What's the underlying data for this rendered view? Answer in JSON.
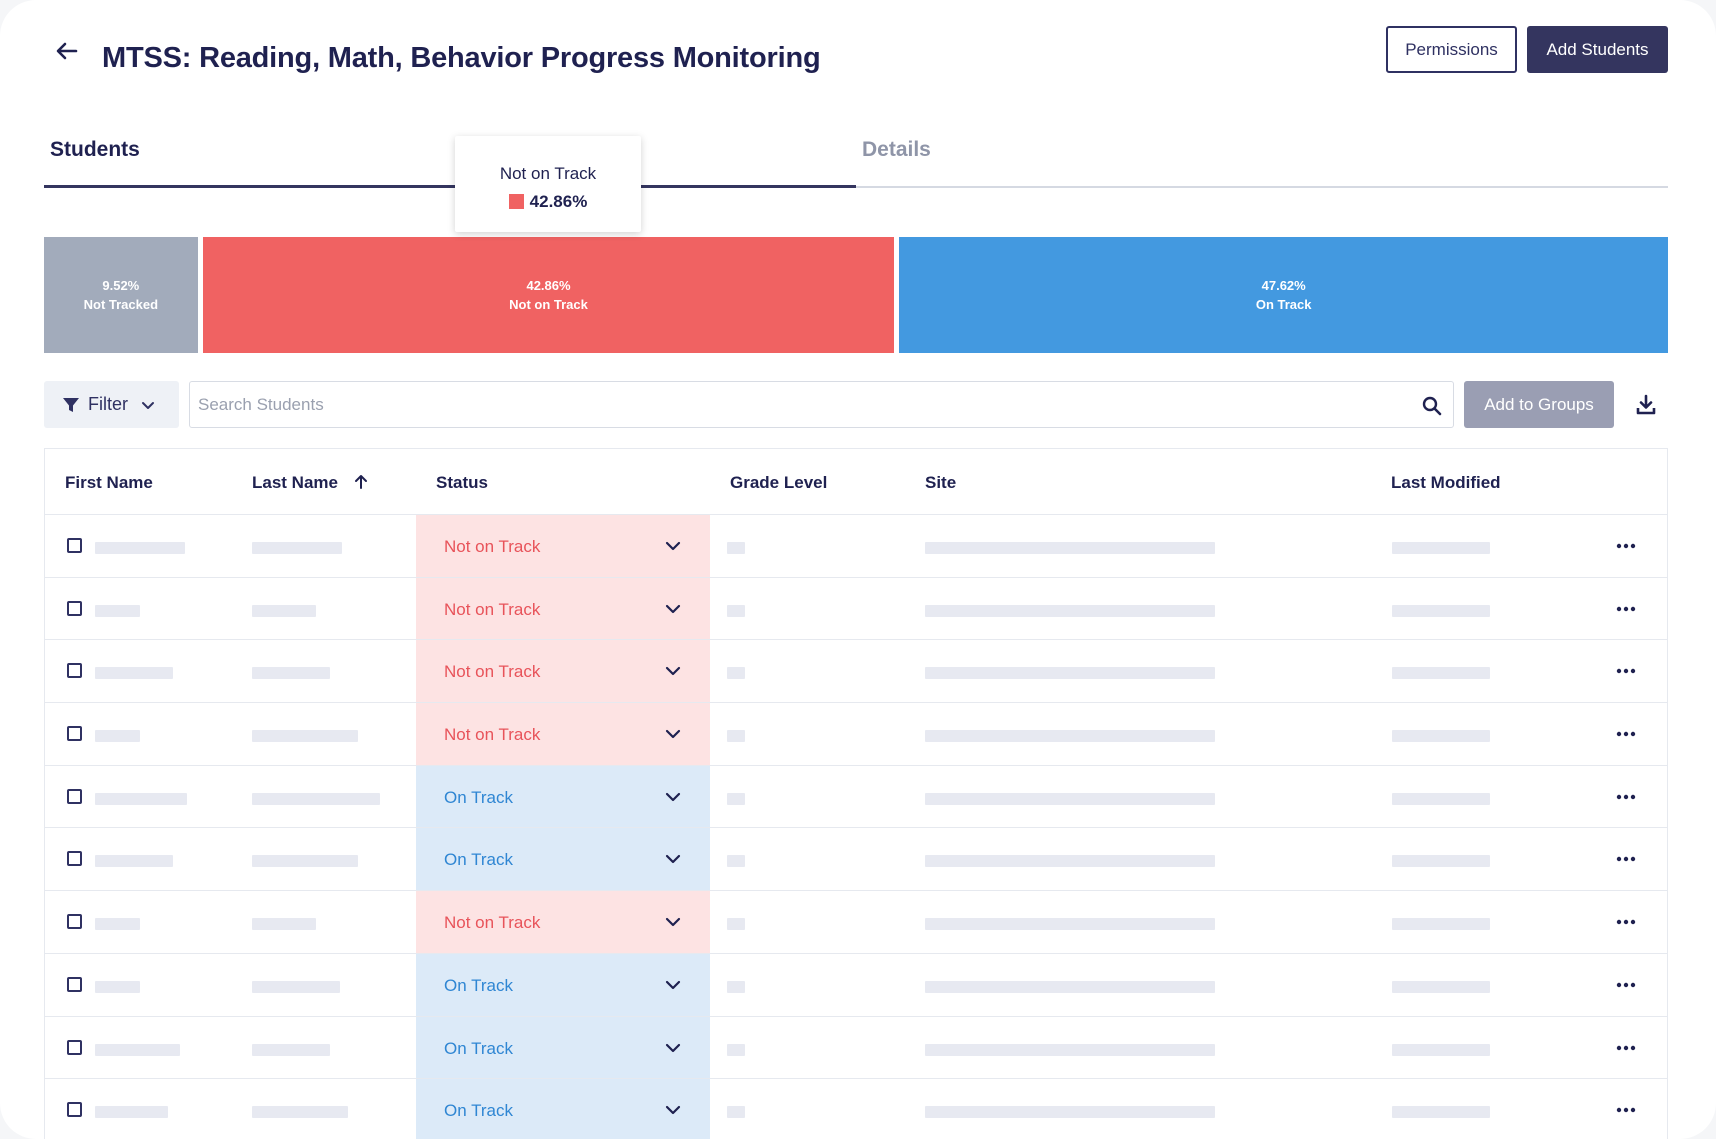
{
  "header": {
    "title": "MTSS: Reading, Math, Behavior Progress Monitoring",
    "permissions_label": "Permissions",
    "add_students_label": "Add Students"
  },
  "tabs": [
    {
      "label": "Students",
      "active": true
    },
    {
      "label": "Details",
      "active": false
    }
  ],
  "tooltip": {
    "label": "Not on Track",
    "value": "42.86%",
    "color": "#f06262"
  },
  "status_bar": [
    {
      "percent_label": "9.52%",
      "label": "Not Tracked",
      "value": 9.52,
      "color": "#a2abbb"
    },
    {
      "percent_label": "42.86%",
      "label": "Not on Track",
      "value": 42.86,
      "color": "#f06262"
    },
    {
      "percent_label": "47.62%",
      "label": "On Track",
      "value": 47.62,
      "color": "#4399e0"
    }
  ],
  "toolbar": {
    "filter_label": "Filter",
    "search_placeholder": "Search Students",
    "add_to_groups_label": "Add to Groups"
  },
  "table": {
    "columns": [
      "First Name",
      "Last Name",
      "Status",
      "Grade Level",
      "Site",
      "Last Modified"
    ],
    "sorted_column": "Last Name",
    "rows": [
      {
        "status": "Not on Track"
      },
      {
        "status": "Not on Track"
      },
      {
        "status": "Not on Track"
      },
      {
        "status": "Not on Track"
      },
      {
        "status": "On Track"
      },
      {
        "status": "On Track"
      },
      {
        "status": "Not on Track"
      },
      {
        "status": "On Track"
      },
      {
        "status": "On Track"
      },
      {
        "status": "On Track"
      }
    ]
  },
  "icons": {
    "back": "arrow-left-icon",
    "filter": "funnel-icon",
    "search": "search-icon",
    "download": "download-icon",
    "sort": "arrow-up-icon",
    "row_menu": "more-horizontal-icon"
  }
}
